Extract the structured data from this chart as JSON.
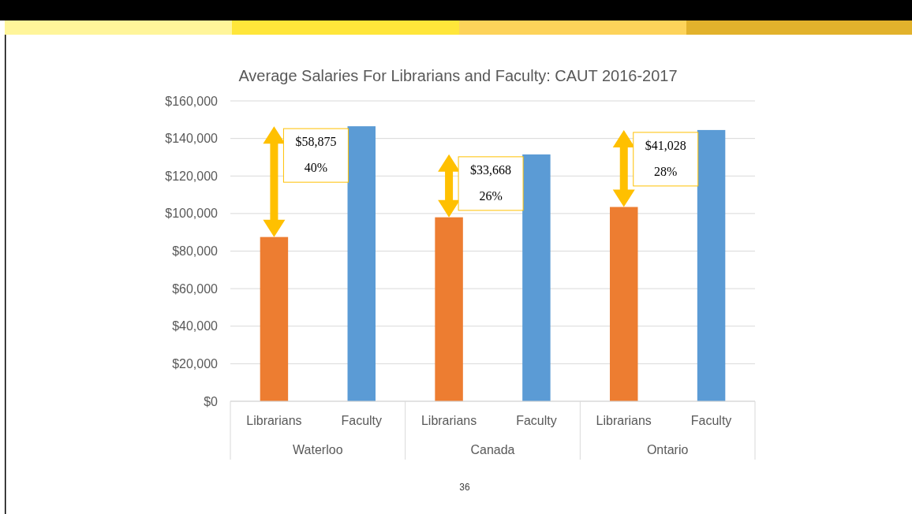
{
  "chart_data": {
    "type": "bar",
    "title": "Average Salaries For Librarians and Faculty: CAUT 2016-2017",
    "categories": [
      "Librarians",
      "Faculty",
      "Librarians",
      "Faculty",
      "Librarians",
      "Faculty"
    ],
    "values": [
      87500,
      146500,
      98000,
      131500,
      103500,
      144500
    ],
    "colors": [
      "#ed7d31",
      "#5b9bd5",
      "#ed7d31",
      "#5b9bd5",
      "#ed7d31",
      "#5b9bd5"
    ],
    "ylim": [
      0,
      160000
    ],
    "yticks": [
      {
        "value": 0,
        "label": "$0"
      },
      {
        "value": 20000,
        "label": "$20,000"
      },
      {
        "value": 40000,
        "label": "$40,000"
      },
      {
        "value": 60000,
        "label": "$60,000"
      },
      {
        "value": 80000,
        "label": "$80,000"
      },
      {
        "value": 100000,
        "label": "$100,000"
      },
      {
        "value": 120000,
        "label": "$120,000"
      },
      {
        "value": 140000,
        "label": "$140,000"
      },
      {
        "value": 160000,
        "label": "$160,000"
      }
    ],
    "grid": "y",
    "annotations": [
      "Waterloo",
      "Canada",
      "Ontario",
      "$58,875",
      "40%",
      "$33,668",
      "26%",
      "$41,028",
      "28%",
      "36"
    ]
  }
}
